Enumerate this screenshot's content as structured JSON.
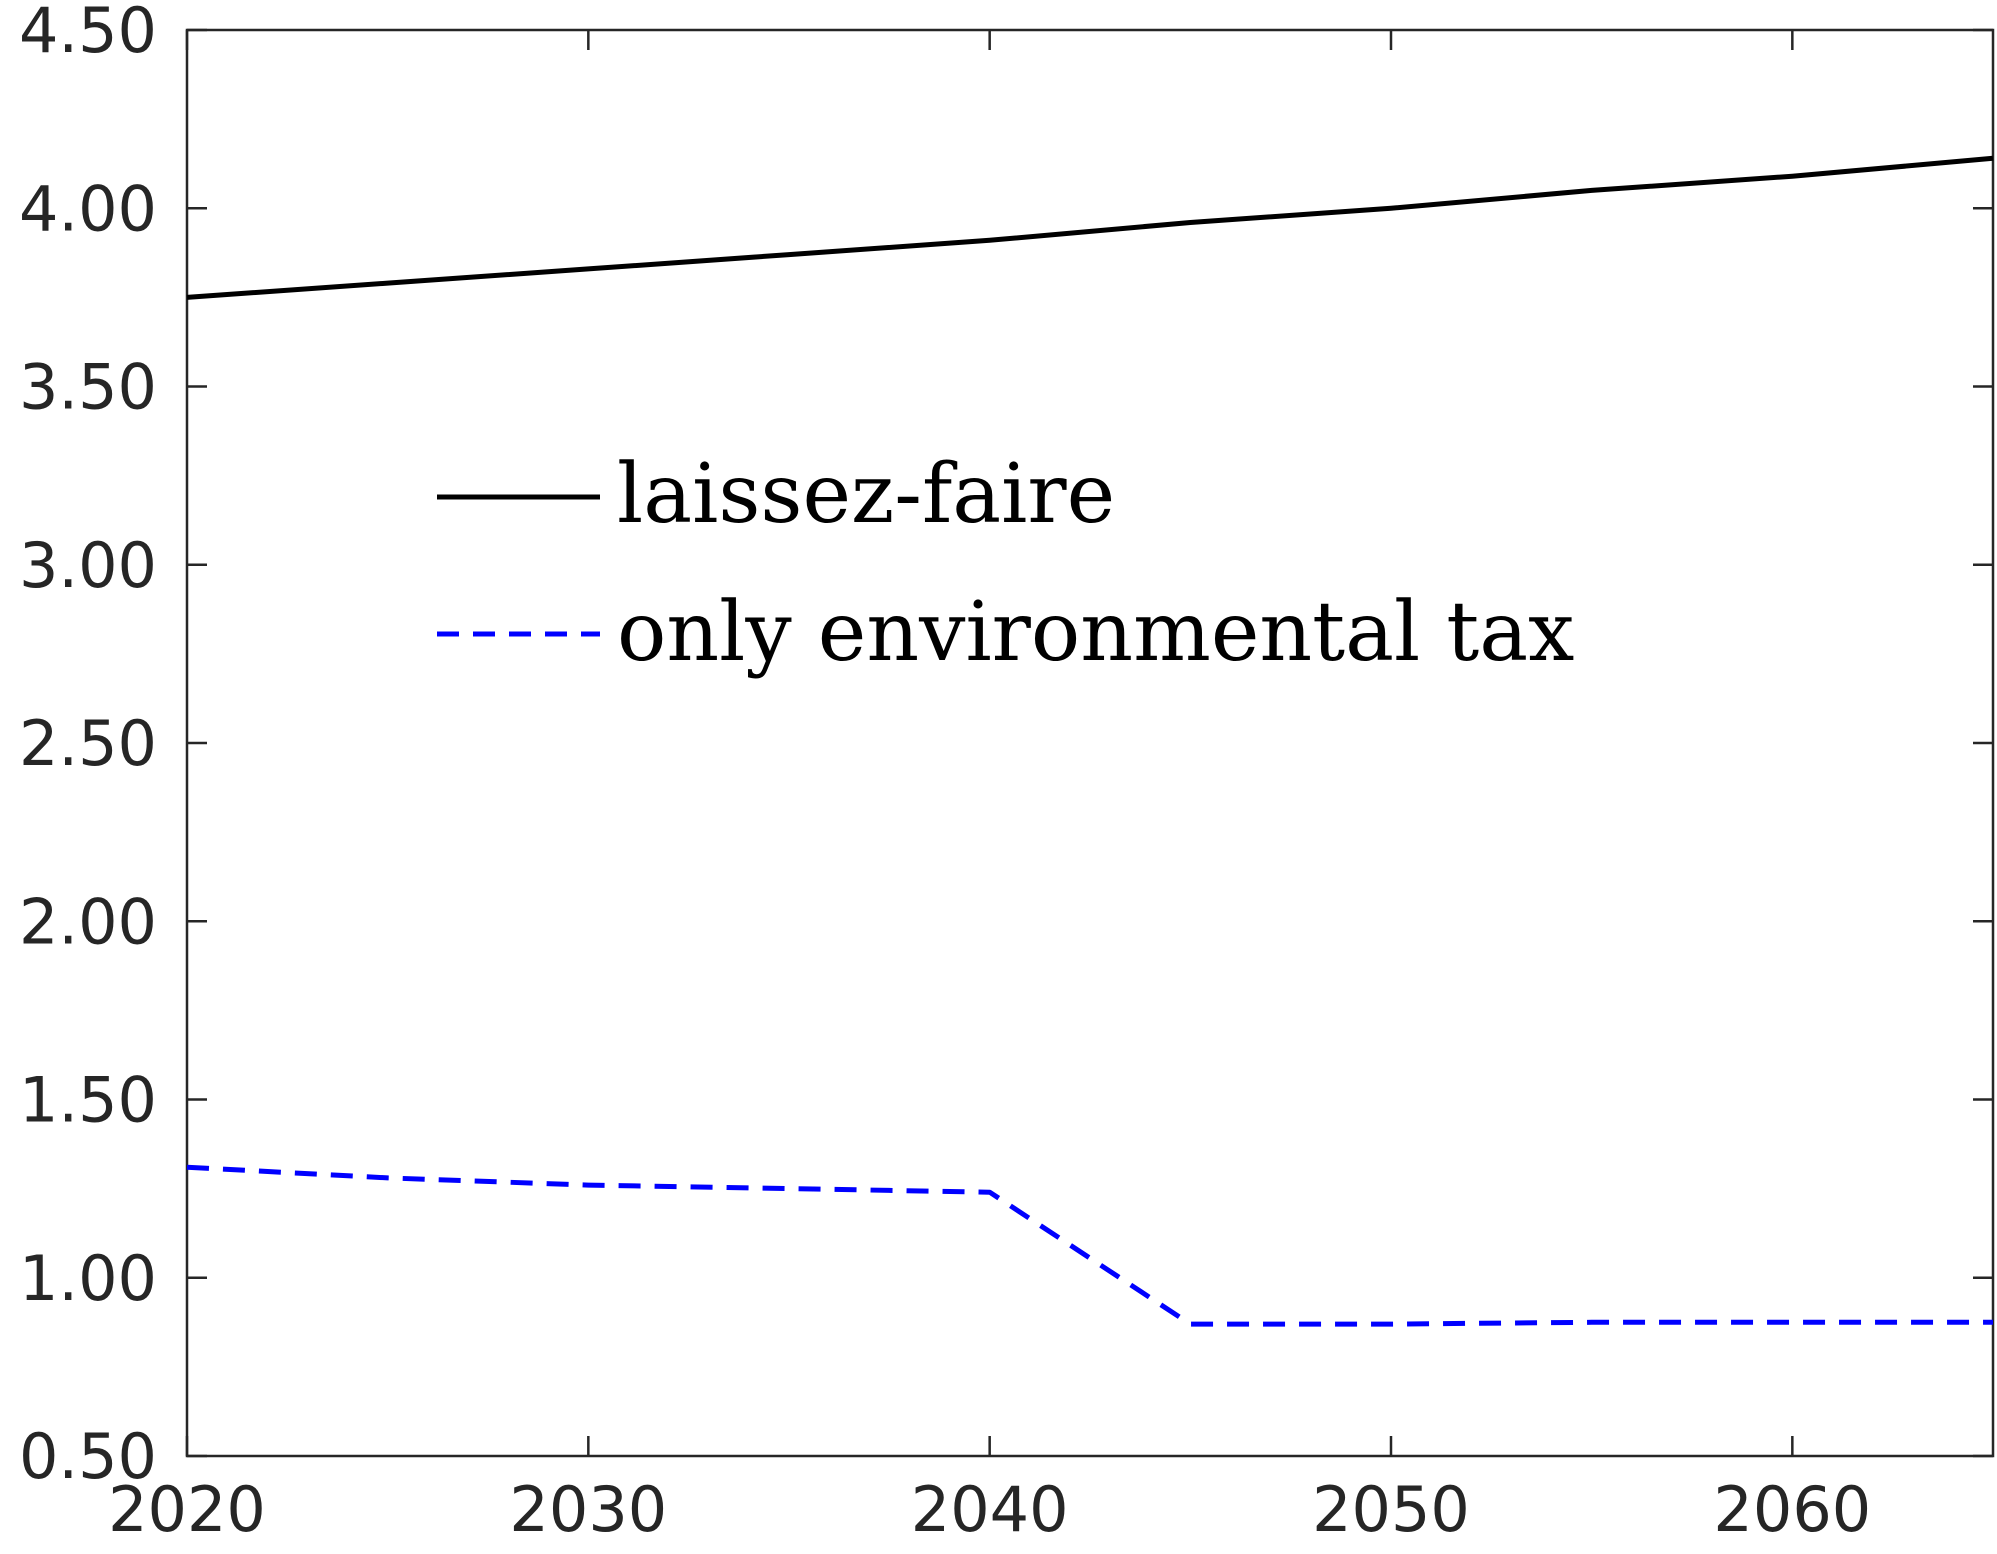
{
  "chart_data": {
    "type": "line",
    "title": "",
    "xlabel": "",
    "ylabel": "",
    "xlim": [
      2020,
      2065
    ],
    "ylim": [
      0.5,
      4.5
    ],
    "xticks": [
      2020,
      2030,
      2040,
      2050,
      2060
    ],
    "xtick_labels": [
      "2020",
      "2030",
      "2040",
      "2050",
      "2060"
    ],
    "yticks": [
      0.5,
      1.0,
      1.5,
      2.0,
      2.5,
      3.0,
      3.5,
      4.0,
      4.5
    ],
    "ytick_labels": [
      "0.50",
      "1.00",
      "1.50",
      "2.00",
      "2.50",
      "3.00",
      "3.50",
      "4.00",
      "4.50"
    ],
    "grid": false,
    "legend_position": "upper-left-center",
    "series": [
      {
        "name": "laissez-faire",
        "color": "#000000",
        "style": "solid",
        "x": [
          2020,
          2025,
          2030,
          2035,
          2040,
          2045,
          2050,
          2055,
          2060,
          2065
        ],
        "y": [
          3.75,
          3.79,
          3.83,
          3.87,
          3.91,
          3.96,
          4.0,
          4.05,
          4.09,
          4.14
        ]
      },
      {
        "name": "only environmental tax",
        "color": "#0000ff",
        "style": "dashed",
        "x": [
          2020,
          2025,
          2030,
          2035,
          2040,
          2045,
          2050,
          2055,
          2060,
          2065
        ],
        "y": [
          1.31,
          1.28,
          1.26,
          1.25,
          1.24,
          0.87,
          0.87,
          0.875,
          0.875,
          0.875
        ]
      }
    ]
  }
}
